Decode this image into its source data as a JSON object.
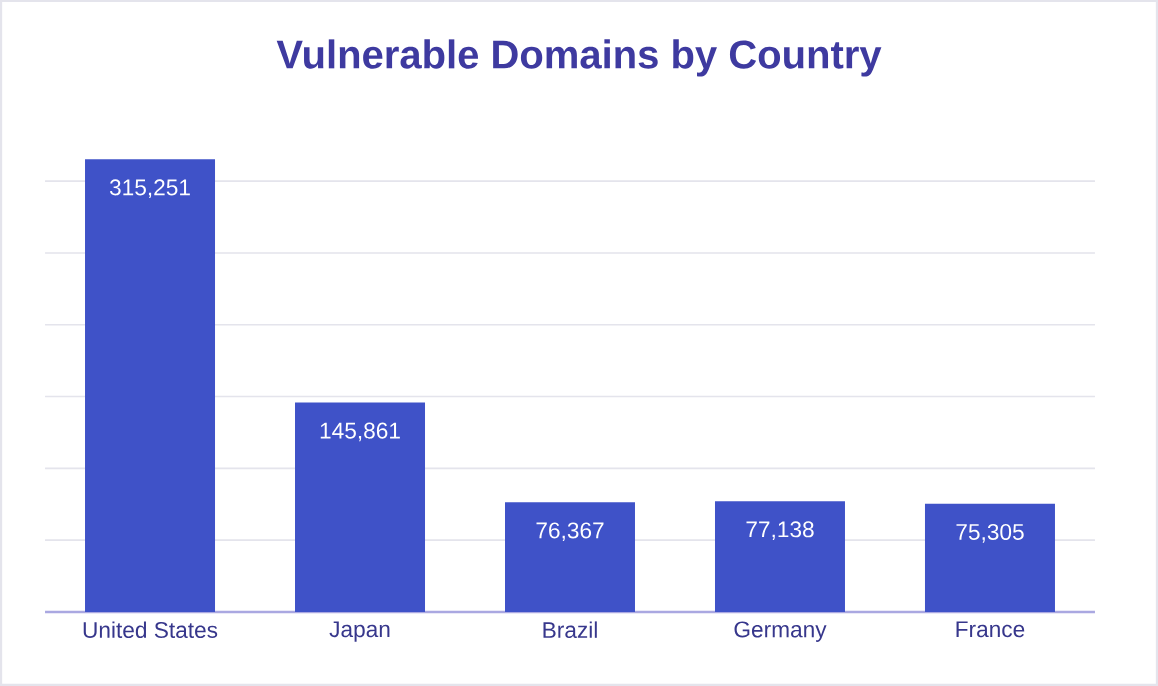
{
  "chart_data": {
    "type": "bar",
    "title": "Vulnerable Domains by Country",
    "categories": [
      "United States",
      "Japan",
      "Brazil",
      "Germany",
      "France"
    ],
    "values": [
      315251,
      145861,
      76367,
      77138,
      75305
    ],
    "value_labels": [
      "315,251",
      "145,861",
      "76,367",
      "77,138",
      "75,305"
    ],
    "color": "#3f52c8",
    "tick_labels": "x",
    "grid": "y"
  }
}
